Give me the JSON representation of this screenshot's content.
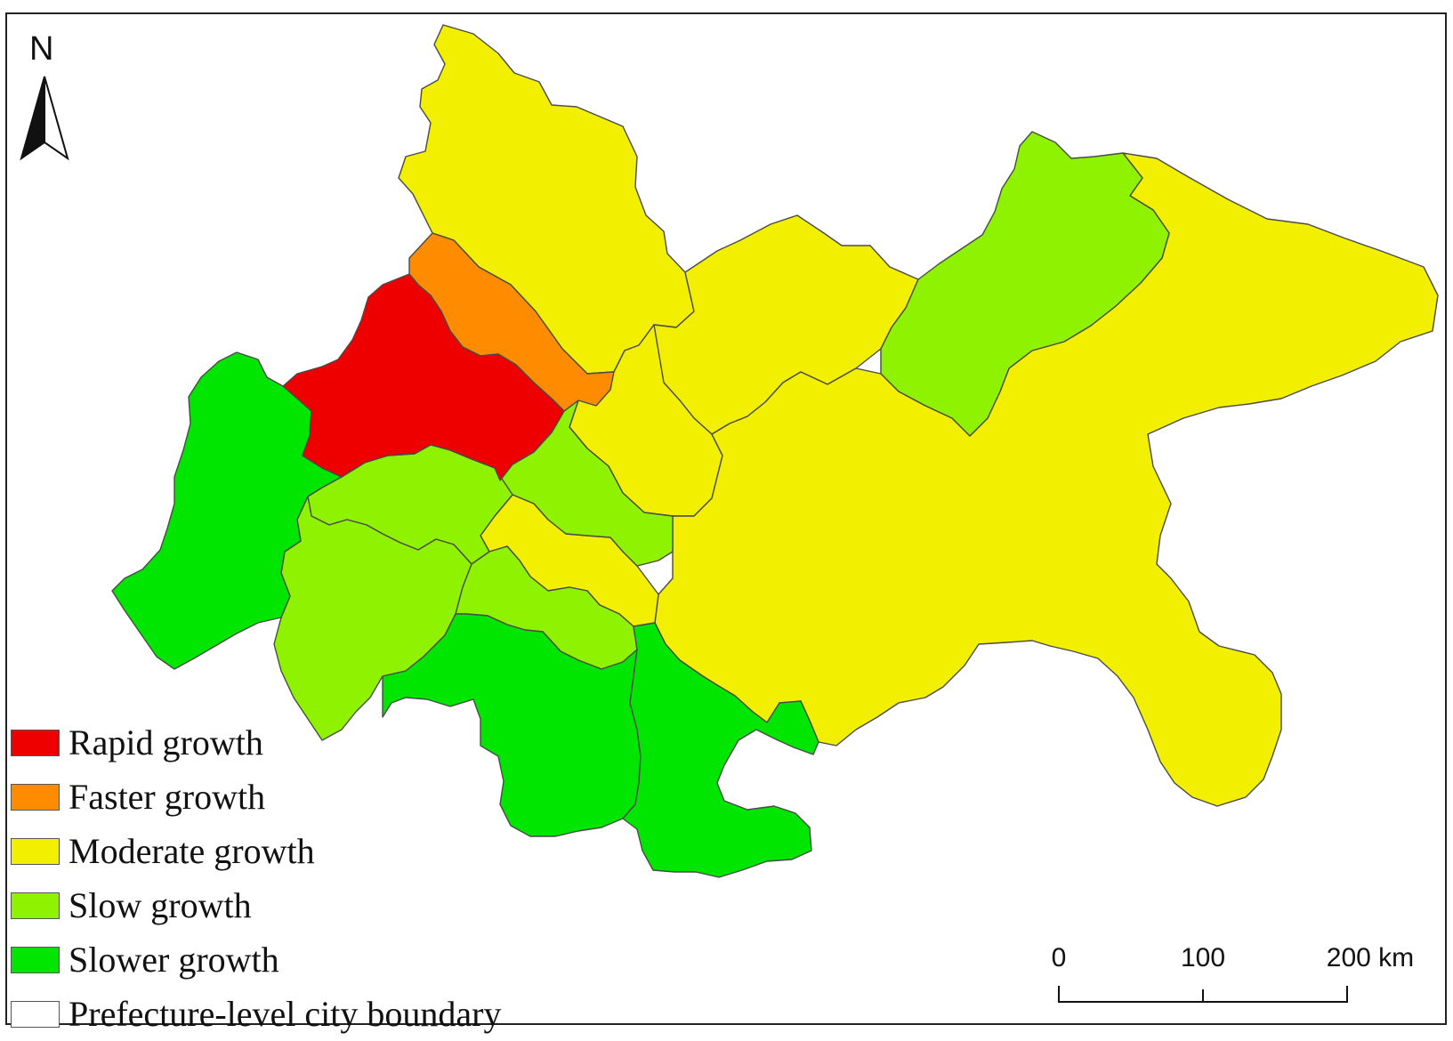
{
  "map": {
    "north_label": "N",
    "legend": [
      {
        "key": "rapid",
        "label": "Rapid growth",
        "color": "#ee0000"
      },
      {
        "key": "faster",
        "label": "Faster growth",
        "color": "#ff8c00"
      },
      {
        "key": "moderate",
        "label": "Moderate growth",
        "color": "#f2ef00"
      },
      {
        "key": "slow",
        "label": "Slow growth",
        "color": "#8ff200"
      },
      {
        "key": "slower",
        "label": "Slower growth",
        "color": "#00e600"
      },
      {
        "key": "boundary",
        "label": "Prefecture-level city boundary",
        "color": "#ffffff"
      }
    ],
    "scale_bar": {
      "labels": [
        "0",
        "100",
        "200 km"
      ]
    }
  }
}
